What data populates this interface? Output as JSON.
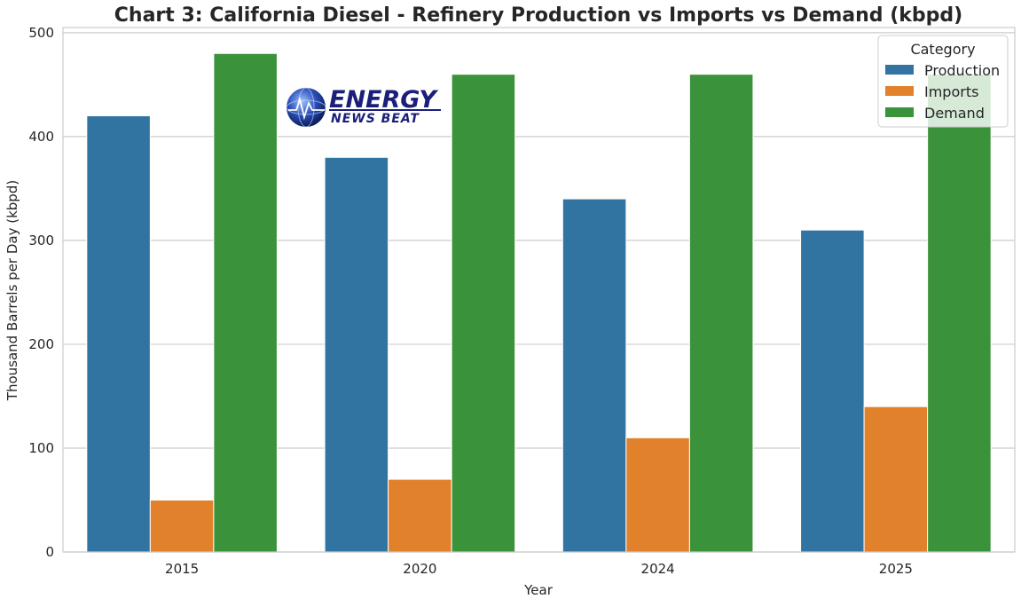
{
  "colors": {
    "production": "#3274a1",
    "imports": "#e1812c",
    "demand": "#3a923a",
    "grid": "#cccccc",
    "text": "#262626"
  },
  "logo": {
    "line1": "ENERGY",
    "line2": "NEWS BEAT",
    "icon": "globe-icon"
  },
  "chart_data": {
    "type": "bar",
    "title": "Chart 3: California Diesel - Refinery Production vs Imports vs Demand (kbpd)",
    "xlabel": "Year",
    "ylabel": "Thousand Barrels per Day (kbpd)",
    "categories": [
      "2015",
      "2020",
      "2024",
      "2025"
    ],
    "series": [
      {
        "name": "Production",
        "values": [
          420,
          380,
          340,
          310
        ]
      },
      {
        "name": "Imports",
        "values": [
          50,
          70,
          110,
          140
        ]
      },
      {
        "name": "Demand",
        "values": [
          480,
          460,
          460,
          460
        ]
      }
    ],
    "ylim": [
      0,
      505
    ],
    "yticks": [
      0,
      100,
      200,
      300,
      400,
      500
    ],
    "grid": true,
    "legend": {
      "title": "Category",
      "placement": "top-right"
    }
  }
}
